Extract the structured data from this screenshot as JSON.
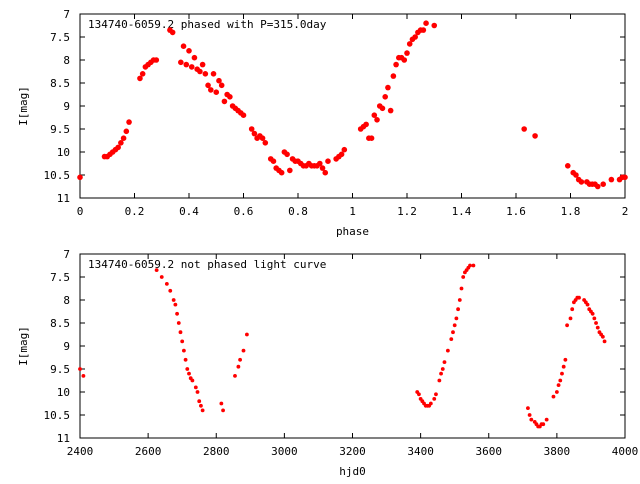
{
  "chart_data": [
    {
      "type": "scatter",
      "title": "134740-6059.2 phased with P=315.0day",
      "xlabel": "phase",
      "ylabel": "I[mag]",
      "xlim": [
        0,
        2
      ],
      "ylim": [
        7,
        11
      ],
      "y_inverted": true,
      "grid": false,
      "marker_color": "#ff0000",
      "xticks": [
        "0",
        "0.2",
        "0.4",
        "0.6",
        "0.8",
        "1",
        "1.2",
        "1.4",
        "1.6",
        "1.8",
        "2"
      ],
      "yticks": [
        "7",
        "7.5",
        "8",
        "8.5",
        "9",
        "9.5",
        "10",
        "10.5",
        "11"
      ],
      "x": [
        0.0,
        0.09,
        0.1,
        0.11,
        0.12,
        0.13,
        0.14,
        0.15,
        0.16,
        0.17,
        0.18,
        0.22,
        0.23,
        0.24,
        0.25,
        0.26,
        0.27,
        0.28,
        0.33,
        0.34,
        0.37,
        0.38,
        0.39,
        0.4,
        0.41,
        0.42,
        0.43,
        0.44,
        0.45,
        0.46,
        0.47,
        0.48,
        0.49,
        0.5,
        0.51,
        0.52,
        0.53,
        0.54,
        0.55,
        0.56,
        0.57,
        0.58,
        0.59,
        0.6,
        0.63,
        0.64,
        0.65,
        0.66,
        0.67,
        0.68,
        0.7,
        0.71,
        0.72,
        0.73,
        0.74,
        0.75,
        0.76,
        0.77,
        0.78,
        0.79,
        0.8,
        0.81,
        0.82,
        0.83,
        0.84,
        0.85,
        0.86,
        0.87,
        0.88,
        0.89,
        0.9,
        0.91,
        0.94,
        0.95,
        0.96,
        0.97,
        1.03,
        1.04,
        1.05,
        1.06,
        1.07,
        1.08,
        1.09,
        1.1,
        1.11,
        1.12,
        1.13,
        1.14,
        1.15,
        1.16,
        1.17,
        1.18,
        1.19,
        1.2,
        1.21,
        1.22,
        1.23,
        1.24,
        1.25,
        1.26,
        1.27,
        1.3,
        1.63,
        1.67,
        1.79,
        1.81,
        1.82,
        1.83,
        1.84,
        1.86,
        1.87,
        1.88,
        1.89,
        1.9,
        1.92,
        1.95,
        1.98,
        1.99,
        2.0
      ],
      "y": [
        10.55,
        10.1,
        10.1,
        10.05,
        10.0,
        9.95,
        9.9,
        9.8,
        9.7,
        9.55,
        9.35,
        8.4,
        8.3,
        8.15,
        8.1,
        8.05,
        8.0,
        8.0,
        7.35,
        7.4,
        8.05,
        7.7,
        8.1,
        7.8,
        8.15,
        7.95,
        8.2,
        8.25,
        8.1,
        8.3,
        8.55,
        8.65,
        8.3,
        8.7,
        8.45,
        8.55,
        8.9,
        8.75,
        8.8,
        9.0,
        9.05,
        9.1,
        9.15,
        9.2,
        9.5,
        9.6,
        9.7,
        9.65,
        9.7,
        9.8,
        10.15,
        10.2,
        10.35,
        10.4,
        10.45,
        10.0,
        10.05,
        10.4,
        10.15,
        10.2,
        10.2,
        10.25,
        10.3,
        10.3,
        10.25,
        10.3,
        10.3,
        10.3,
        10.25,
        10.35,
        10.45,
        10.2,
        10.15,
        10.1,
        10.05,
        9.95,
        9.5,
        9.45,
        9.4,
        9.7,
        9.7,
        9.2,
        9.3,
        9.0,
        9.05,
        8.8,
        8.6,
        9.1,
        8.35,
        8.1,
        7.95,
        7.95,
        8.0,
        7.85,
        7.65,
        7.55,
        7.5,
        7.4,
        7.35,
        7.35,
        7.2,
        7.25,
        9.5,
        9.65,
        10.3,
        10.45,
        10.5,
        10.6,
        10.65,
        10.65,
        10.7,
        10.7,
        10.7,
        10.75,
        10.7,
        10.6,
        10.6,
        10.55,
        10.55
      ]
    },
    {
      "type": "scatter",
      "title": "134740-6059.2 not phased light curve",
      "xlabel": "hjd0",
      "ylabel": "I[mag]",
      "xlim": [
        2400,
        4000
      ],
      "ylim": [
        7,
        11
      ],
      "y_inverted": true,
      "grid": false,
      "marker_color": "#ff0000",
      "xticks": [
        "2400",
        "2600",
        "2800",
        "3000",
        "3200",
        "3400",
        "3600",
        "3800",
        "4000"
      ],
      "yticks": [
        "7",
        "7.5",
        "8",
        "8.5",
        "9",
        "9.5",
        "10",
        "10.5",
        "11"
      ],
      "x": [
        2400,
        2410,
        2625,
        2640,
        2655,
        2665,
        2675,
        2680,
        2685,
        2690,
        2695,
        2700,
        2705,
        2710,
        2715,
        2720,
        2725,
        2730,
        2740,
        2745,
        2750,
        2755,
        2760,
        2815,
        2820,
        2855,
        2865,
        2870,
        2880,
        2890,
        3390,
        3395,
        3400,
        3405,
        3410,
        3415,
        3420,
        3425,
        3430,
        3440,
        3445,
        3455,
        3460,
        3465,
        3470,
        3480,
        3490,
        3495,
        3500,
        3505,
        3510,
        3515,
        3520,
        3525,
        3530,
        3535,
        3540,
        3545,
        3555,
        3715,
        3720,
        3725,
        3735,
        3740,
        3745,
        3750,
        3755,
        3760,
        3770,
        3790,
        3800,
        3805,
        3810,
        3815,
        3820,
        3825,
        3830,
        3840,
        3845,
        3850,
        3855,
        3860,
        3865,
        3880,
        3885,
        3890,
        3895,
        3900,
        3905,
        3910,
        3915,
        3920,
        3925,
        3930,
        3935,
        3940
      ],
      "y": [
        9.5,
        9.65,
        7.35,
        7.5,
        7.65,
        7.8,
        8.0,
        8.1,
        8.3,
        8.5,
        8.7,
        8.9,
        9.1,
        9.3,
        9.5,
        9.6,
        9.7,
        9.75,
        9.9,
        10.0,
        10.2,
        10.3,
        10.4,
        10.25,
        10.4,
        9.65,
        9.45,
        9.3,
        9.1,
        8.75,
        10.0,
        10.05,
        10.15,
        10.2,
        10.25,
        10.3,
        10.3,
        10.3,
        10.25,
        10.15,
        10.05,
        9.75,
        9.6,
        9.5,
        9.35,
        9.1,
        8.85,
        8.7,
        8.55,
        8.4,
        8.2,
        8.0,
        7.75,
        7.5,
        7.4,
        7.35,
        7.3,
        7.25,
        7.25,
        10.35,
        10.5,
        10.6,
        10.65,
        10.7,
        10.75,
        10.75,
        10.7,
        10.7,
        10.6,
        10.1,
        10.0,
        9.85,
        9.75,
        9.6,
        9.45,
        9.3,
        8.55,
        8.4,
        8.2,
        8.05,
        8.0,
        7.95,
        7.95,
        8.0,
        8.05,
        8.1,
        8.2,
        8.25,
        8.3,
        8.4,
        8.5,
        8.6,
        8.7,
        8.75,
        8.8,
        8.9
      ]
    }
  ]
}
